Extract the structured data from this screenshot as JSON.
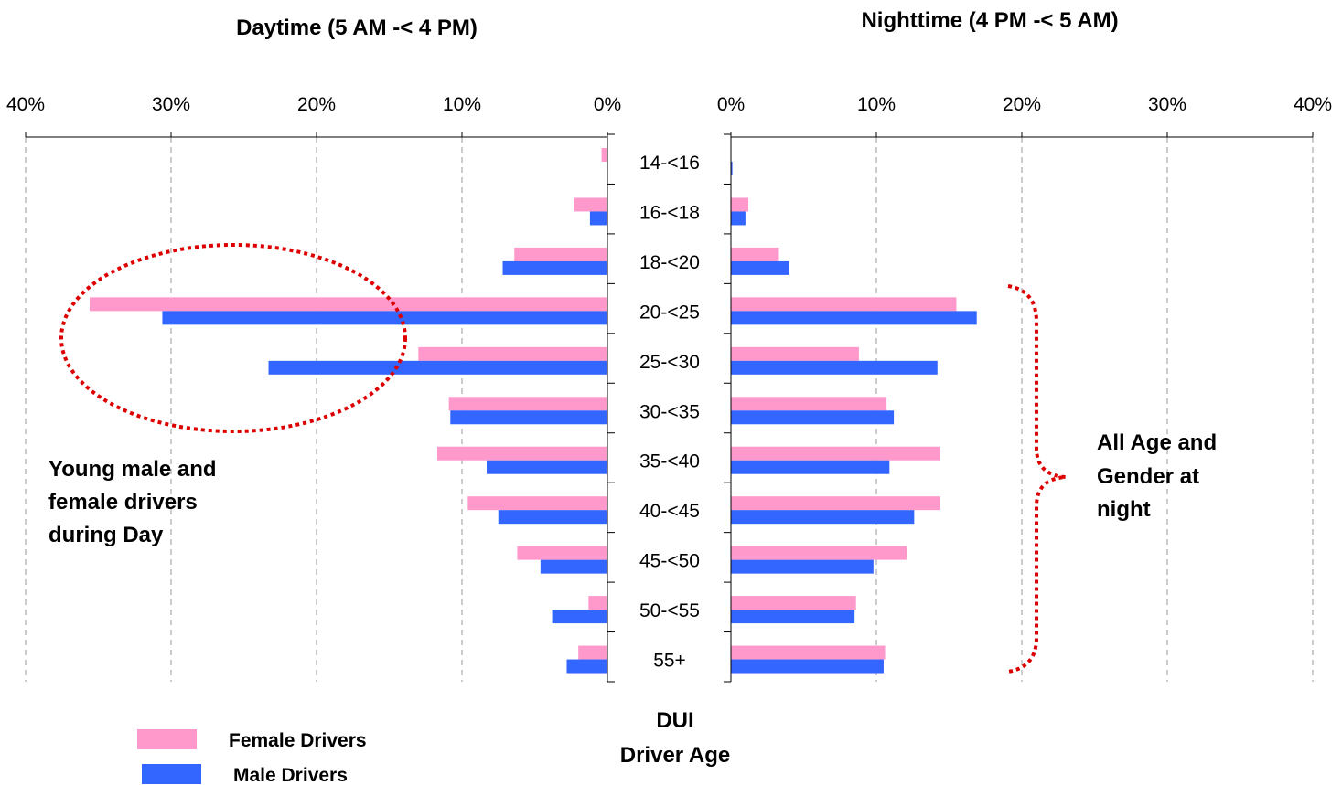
{
  "chart_data": {
    "type": "bar",
    "layout": "back-to-back horizontal",
    "categories": [
      "14-<16",
      "16-<18",
      "18-<20",
      "20-<25",
      "25-<30",
      "30-<35",
      "35-<40",
      "40-<45",
      "45-<50",
      "50-<55",
      "55+"
    ],
    "category_axis_label": [
      "DUI",
      "Driver Age"
    ],
    "xlim": [
      0,
      40
    ],
    "x_ticks": [
      "0%",
      "10%",
      "20%",
      "30%",
      "40%"
    ],
    "grid": true,
    "legend_position": "bottom-left",
    "panels": [
      {
        "title": "Daytime (5 AM -< 4 PM)",
        "direction": "left",
        "series": [
          {
            "name": "Female Drivers",
            "values": [
              0.4,
              2.3,
              6.4,
              35.6,
              13.0,
              10.9,
              11.7,
              9.6,
              6.2,
              1.3,
              2.0
            ]
          },
          {
            "name": "Male Drivers",
            "values": [
              0.0,
              1.2,
              7.2,
              30.6,
              23.3,
              10.8,
              8.3,
              7.5,
              4.6,
              3.8,
              2.8
            ]
          }
        ]
      },
      {
        "title": "Nighttime (4 PM -< 5 AM)",
        "direction": "right",
        "series": [
          {
            "name": "Female Drivers",
            "values": [
              0.0,
              1.2,
              3.3,
              15.5,
              8.8,
              10.7,
              14.4,
              14.4,
              12.1,
              8.6,
              10.6
            ]
          },
          {
            "name": "Male Drivers",
            "values": [
              0.1,
              1.0,
              4.0,
              16.9,
              14.2,
              11.2,
              10.9,
              12.6,
              9.8,
              8.5,
              10.5
            ]
          }
        ]
      }
    ],
    "colors": {
      "Female Drivers": "#ff99cc",
      "Male Drivers": "#3366ff",
      "annotation": "#dd0000"
    },
    "annotations": [
      {
        "lines": [
          "Young male and",
          "female drivers",
          "during Day"
        ]
      },
      {
        "lines": [
          "All Age and",
          "Gender at",
          "night"
        ]
      }
    ]
  }
}
